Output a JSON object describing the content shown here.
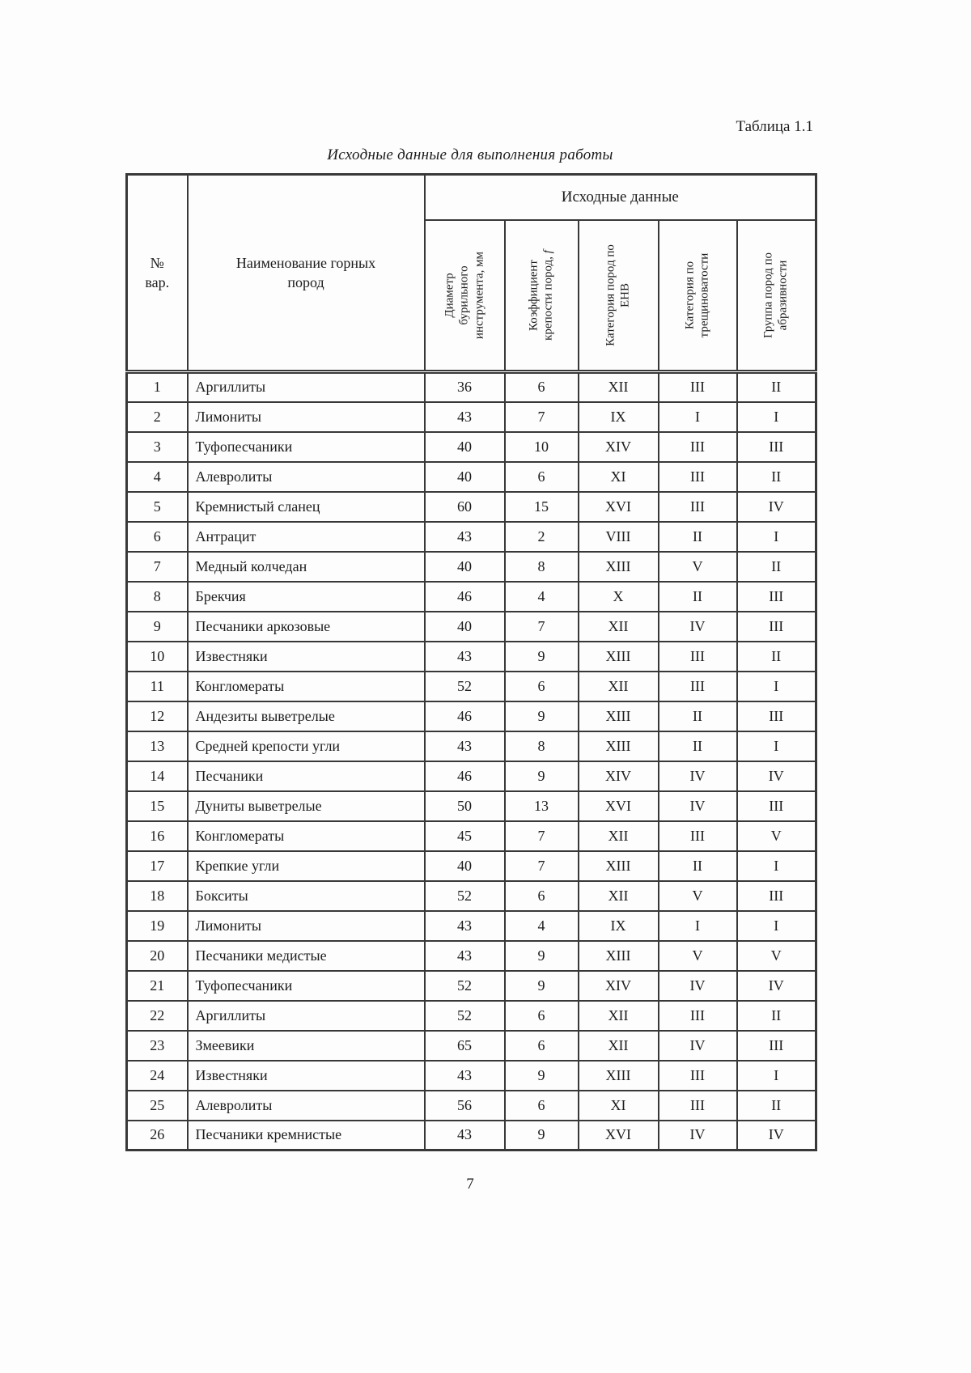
{
  "caption": "Таблица 1.1",
  "title": "Исходные данные для выполнения работы",
  "page_number": "7",
  "table": {
    "group_header": "Исходные данные",
    "col_num_label": "№\nвар.",
    "col_name_label": "Наименование горных пород",
    "vertical_columns": [
      {
        "label": "Диаметр бурильного инструмента, мм",
        "italic_suffix": ""
      },
      {
        "label": "Коэффициент крепости пород, ",
        "italic_suffix": "f"
      },
      {
        "label": "Категория пород по ЕНВ",
        "italic_suffix": ""
      },
      {
        "label": "Категория по трещиноватости",
        "italic_suffix": ""
      },
      {
        "label": "Группа пород по абразивности",
        "italic_suffix": ""
      }
    ],
    "rows": [
      {
        "num": "1",
        "name": "Аргиллиты",
        "diameter": "36",
        "f": "6",
        "env": "XII",
        "fracture": "III",
        "abrasive": "II"
      },
      {
        "num": "2",
        "name": "Лимониты",
        "diameter": "43",
        "f": "7",
        "env": "IX",
        "fracture": "I",
        "abrasive": "I"
      },
      {
        "num": "3",
        "name": "Туфопесчаники",
        "diameter": "40",
        "f": "10",
        "env": "XIV",
        "fracture": "III",
        "abrasive": "III"
      },
      {
        "num": "4",
        "name": "Алевролиты",
        "diameter": "40",
        "f": "6",
        "env": "XI",
        "fracture": "III",
        "abrasive": "II"
      },
      {
        "num": "5",
        "name": "Кремнистый сланец",
        "diameter": "60",
        "f": "15",
        "env": "XVI",
        "fracture": "III",
        "abrasive": "IV"
      },
      {
        "num": "6",
        "name": "Антрацит",
        "diameter": "43",
        "f": "2",
        "env": "VIII",
        "fracture": "II",
        "abrasive": "I"
      },
      {
        "num": "7",
        "name": "Медный колчедан",
        "diameter": "40",
        "f": "8",
        "env": "XIII",
        "fracture": "V",
        "abrasive": "II"
      },
      {
        "num": "8",
        "name": "Брекчия",
        "diameter": "46",
        "f": "4",
        "env": "X",
        "fracture": "II",
        "abrasive": "III"
      },
      {
        "num": "9",
        "name": "Песчаники аркозовые",
        "diameter": "40",
        "f": "7",
        "env": "XII",
        "fracture": "IV",
        "abrasive": "III"
      },
      {
        "num": "10",
        "name": "Известняки",
        "diameter": "43",
        "f": "9",
        "env": "XIII",
        "fracture": "III",
        "abrasive": "II"
      },
      {
        "num": "11",
        "name": "Конгломераты",
        "diameter": "52",
        "f": "6",
        "env": "XII",
        "fracture": "III",
        "abrasive": "I"
      },
      {
        "num": "12",
        "name": "Андезиты выветрелые",
        "diameter": "46",
        "f": "9",
        "env": "XIII",
        "fracture": "II",
        "abrasive": "III"
      },
      {
        "num": "13",
        "name": "Средней крепости угли",
        "diameter": "43",
        "f": "8",
        "env": "XIII",
        "fracture": "II",
        "abrasive": "I"
      },
      {
        "num": "14",
        "name": "Песчаники",
        "diameter": "46",
        "f": "9",
        "env": "XIV",
        "fracture": "IV",
        "abrasive": "IV"
      },
      {
        "num": "15",
        "name": "Дуниты выветрелые",
        "diameter": "50",
        "f": "13",
        "env": "XVI",
        "fracture": "IV",
        "abrasive": "III"
      },
      {
        "num": "16",
        "name": "Конгломераты",
        "diameter": "45",
        "f": "7",
        "env": "XII",
        "fracture": "III",
        "abrasive": "V"
      },
      {
        "num": "17",
        "name": "Крепкие угли",
        "diameter": "40",
        "f": "7",
        "env": "XIII",
        "fracture": "II",
        "abrasive": "I"
      },
      {
        "num": "18",
        "name": "Бокситы",
        "diameter": "52",
        "f": "6",
        "env": "XII",
        "fracture": "V",
        "abrasive": "III"
      },
      {
        "num": "19",
        "name": "Лимониты",
        "diameter": "43",
        "f": "4",
        "env": "IX",
        "fracture": "I",
        "abrasive": "I"
      },
      {
        "num": "20",
        "name": "Песчаники медистые",
        "diameter": "43",
        "f": "9",
        "env": "XIII",
        "fracture": "V",
        "abrasive": "V"
      },
      {
        "num": "21",
        "name": "Туфопесчаники",
        "diameter": "52",
        "f": "9",
        "env": "XIV",
        "fracture": "IV",
        "abrasive": "IV"
      },
      {
        "num": "22",
        "name": "Аргиллиты",
        "diameter": "52",
        "f": "6",
        "env": "XII",
        "fracture": "III",
        "abrasive": "II"
      },
      {
        "num": "23",
        "name": "Змеевики",
        "diameter": "65",
        "f": "6",
        "env": "XII",
        "fracture": "IV",
        "abrasive": "III"
      },
      {
        "num": "24",
        "name": "Известняки",
        "diameter": "43",
        "f": "9",
        "env": "XIII",
        "fracture": "III",
        "abrasive": "I"
      },
      {
        "num": "25",
        "name": "Алевролиты",
        "diameter": "56",
        "f": "6",
        "env": "XI",
        "fracture": "III",
        "abrasive": "II"
      },
      {
        "num": "26",
        "name": "Песчаники кремнистые",
        "diameter": "43",
        "f": "9",
        "env": "XVI",
        "fracture": "IV",
        "abrasive": "IV"
      }
    ]
  }
}
